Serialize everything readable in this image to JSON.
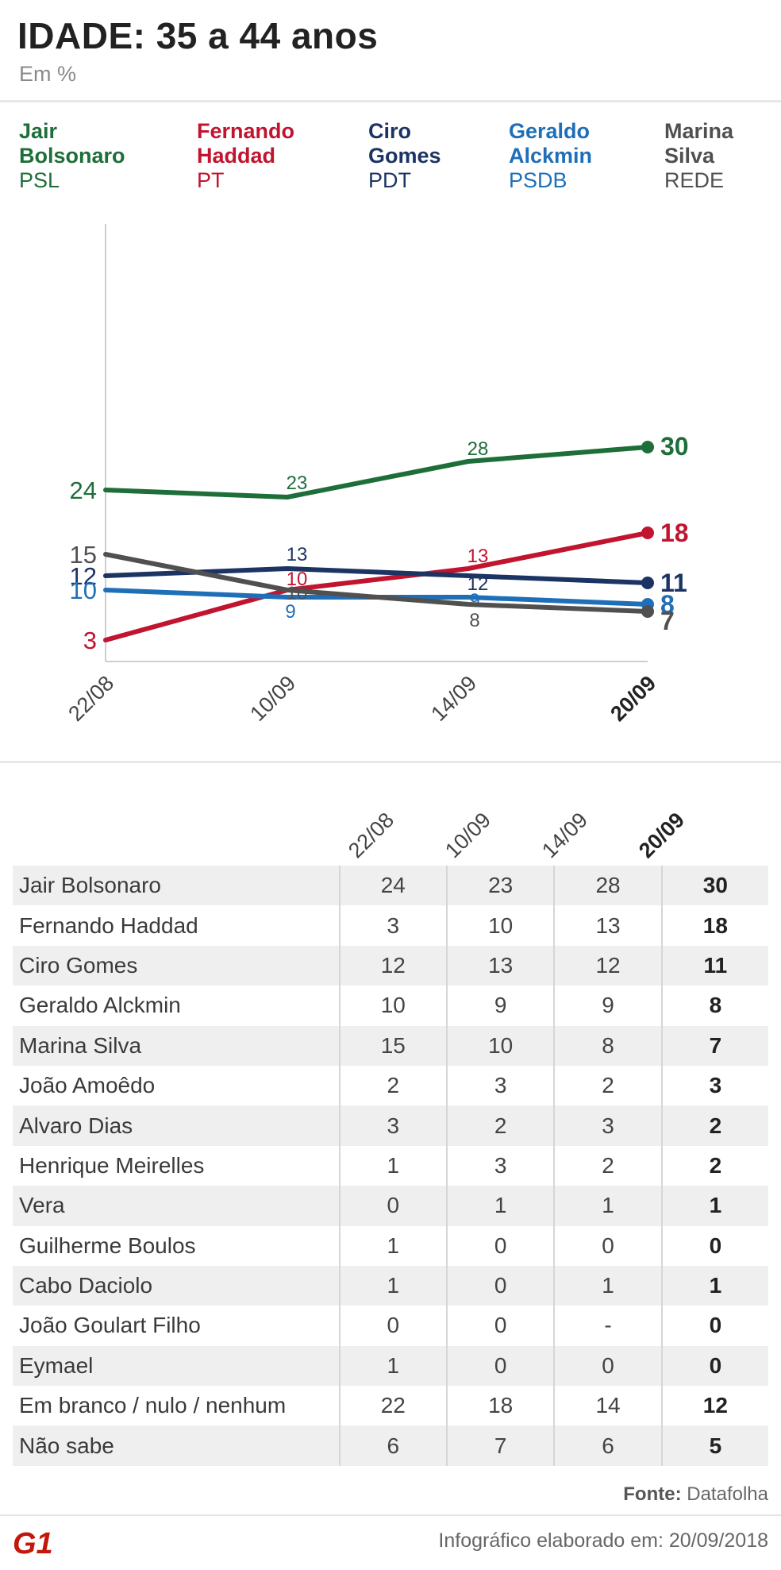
{
  "title": "IDADE: 35 a 44 anos",
  "subtitle": "Em %",
  "legend": [
    {
      "name": "Jair\nBolsonaro",
      "party": "PSL",
      "color": "#1e6e3a"
    },
    {
      "name": "Fernando\nHaddad",
      "party": "PT",
      "color": "#c0142f"
    },
    {
      "name": "Ciro\nGomes",
      "party": "PDT",
      "color": "#1c3463"
    },
    {
      "name": "Geraldo\nAlckmin",
      "party": "PSDB",
      "color": "#1f6fb8"
    },
    {
      "name": "Marina\nSilva",
      "party": "REDE",
      "color": "#505050"
    }
  ],
  "chart_data": {
    "type": "line",
    "x": [
      "22/08",
      "10/09",
      "14/09",
      "20/09"
    ],
    "ylim": [
      0,
      50
    ],
    "grid": false,
    "series": [
      {
        "name": "Jair Bolsonaro",
        "party": "PSL",
        "color": "#1e6e3a",
        "values": [
          24,
          23,
          28,
          30
        ]
      },
      {
        "name": "Fernando Haddad",
        "party": "PT",
        "color": "#c0142f",
        "values": [
          3,
          10,
          13,
          18
        ]
      },
      {
        "name": "Ciro Gomes",
        "party": "PDT",
        "color": "#1c3463",
        "values": [
          12,
          13,
          12,
          11
        ]
      },
      {
        "name": "Geraldo Alckmin",
        "party": "PSDB",
        "color": "#1f6fb8",
        "values": [
          10,
          9,
          9,
          8
        ]
      },
      {
        "name": "Marina Silva",
        "party": "REDE",
        "color": "#505050",
        "values": [
          15,
          10,
          8,
          7
        ]
      }
    ]
  },
  "table": {
    "columns": [
      "22/08",
      "10/09",
      "14/09",
      "20/09"
    ],
    "rows": [
      {
        "name": "Jair Bolsonaro",
        "values": [
          "24",
          "23",
          "28",
          "30"
        ]
      },
      {
        "name": "Fernando Haddad",
        "values": [
          "3",
          "10",
          "13",
          "18"
        ]
      },
      {
        "name": "Ciro Gomes",
        "values": [
          "12",
          "13",
          "12",
          "11"
        ]
      },
      {
        "name": "Geraldo Alckmin",
        "values": [
          "10",
          "9",
          "9",
          "8"
        ]
      },
      {
        "name": "Marina Silva",
        "values": [
          "15",
          "10",
          "8",
          "7"
        ]
      },
      {
        "name": "João Amoêdo",
        "values": [
          "2",
          "3",
          "2",
          "3"
        ]
      },
      {
        "name": "Alvaro Dias",
        "values": [
          "3",
          "2",
          "3",
          "2"
        ]
      },
      {
        "name": "Henrique Meirelles",
        "values": [
          "1",
          "3",
          "2",
          "2"
        ]
      },
      {
        "name": "Vera",
        "values": [
          "0",
          "1",
          "1",
          "1"
        ]
      },
      {
        "name": "Guilherme Boulos",
        "values": [
          "1",
          "0",
          "0",
          "0"
        ]
      },
      {
        "name": "Cabo Daciolo",
        "values": [
          "1",
          "0",
          "1",
          "1"
        ]
      },
      {
        "name": "João Goulart Filho",
        "values": [
          "0",
          "0",
          "-",
          "0"
        ]
      },
      {
        "name": "Eymael",
        "values": [
          "1",
          "0",
          "0",
          "0"
        ]
      },
      {
        "name": "Em branco / nulo / nenhum",
        "values": [
          "22",
          "18",
          "14",
          "12"
        ]
      },
      {
        "name": "Não sabe",
        "values": [
          "6",
          "7",
          "6",
          "5"
        ]
      }
    ]
  },
  "source_label": "Fonte:",
  "source_value": "Datafolha",
  "credit_label": "Infográfico elaborado em:",
  "credit_date": "20/09/2018",
  "logo_text": "G1",
  "logo_color": "#c4170c"
}
